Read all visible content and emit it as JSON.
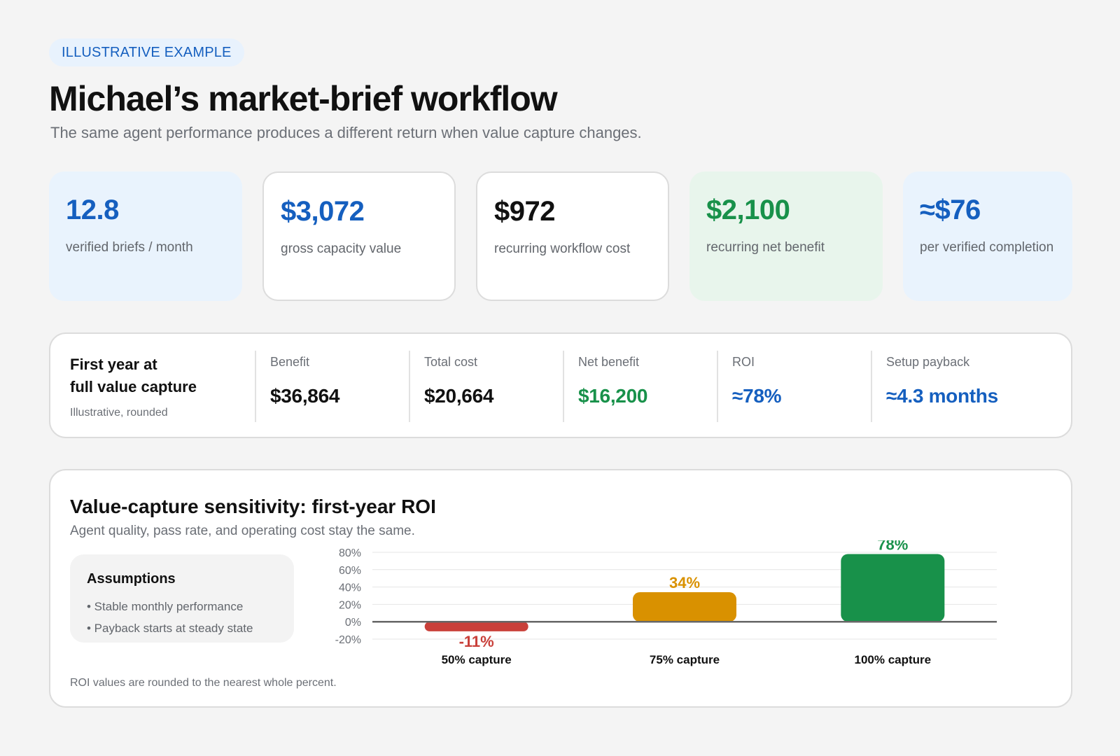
{
  "badge": "ILLUSTRATIVE EXAMPLE",
  "title": "Michael’s market-brief workflow",
  "subtitle": "The same agent performance produces a different return when value capture changes.",
  "kpis": [
    {
      "value": "12.8",
      "label": "verified briefs / month",
      "tone": "blue"
    },
    {
      "value": "$3,072",
      "label": "gross capacity value",
      "tone": "white-blue"
    },
    {
      "value": "$972",
      "label": "recurring workflow cost",
      "tone": "white-black"
    },
    {
      "value": "$2,100",
      "label": "recurring net benefit",
      "tone": "green"
    },
    {
      "value": "≈$76",
      "label": "per verified completion",
      "tone": "blue"
    }
  ],
  "first_year": {
    "title_line1": "First year at",
    "title_line2": "full value capture",
    "note": "Illustrative, rounded",
    "metrics": [
      {
        "label": "Benefit",
        "value": "$36,864"
      },
      {
        "label": "Total cost",
        "value": "$20,664"
      },
      {
        "label": "Net benefit",
        "value": "$16,200"
      },
      {
        "label": "ROI",
        "value": "≈78%"
      },
      {
        "label": "Setup payback",
        "value": "≈4.3 months"
      }
    ]
  },
  "sensitivity": {
    "title": "Value-capture sensitivity: first-year ROI",
    "subtitle": "Agent quality, pass rate, and operating cost stay the same.",
    "assumptions_title": "Assumptions",
    "assumptions": [
      "• Stable monthly performance",
      "• Payback starts at steady state"
    ],
    "footnote": "ROI values are rounded to the nearest whole percent."
  },
  "colors": {
    "blue": "#155fbf",
    "green": "#18914a",
    "amber": "#d99100",
    "red": "#c9403a",
    "black": "#111111"
  },
  "chart_data": {
    "type": "bar",
    "categories": [
      "50% capture",
      "75% capture",
      "100% capture"
    ],
    "values": [
      -11,
      34,
      78
    ],
    "value_labels": [
      "-11%",
      "34%",
      "78%"
    ],
    "colors": [
      "#c9403a",
      "#d99100",
      "#18914a"
    ],
    "yticks": [
      "80%",
      "60%",
      "40%",
      "20%",
      "0%",
      "-20%"
    ],
    "ylim": [
      -20,
      80
    ],
    "grid": true
  }
}
